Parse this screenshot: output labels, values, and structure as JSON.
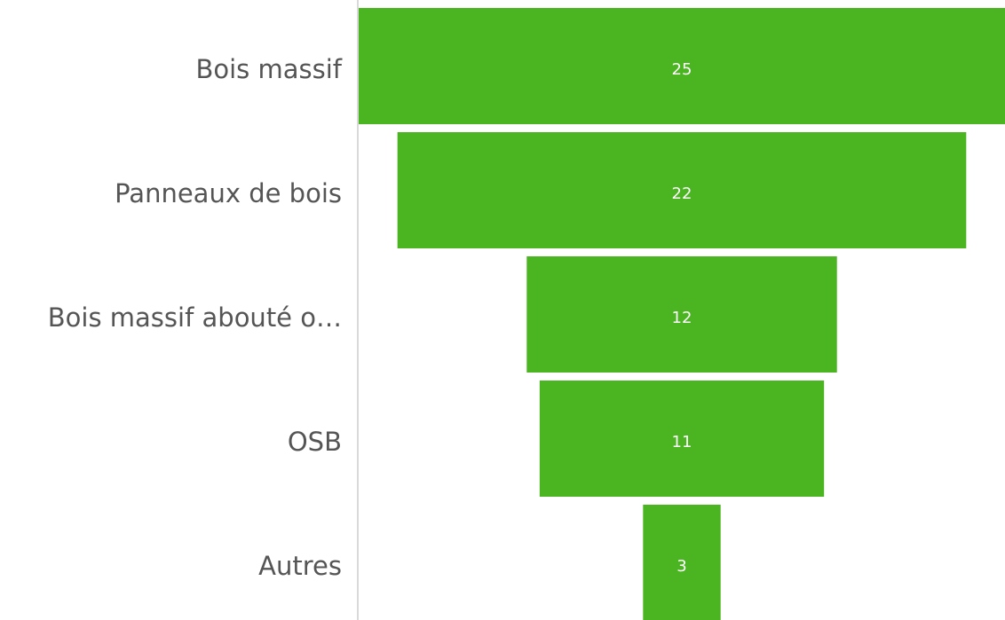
{
  "chart_data": {
    "type": "funnel",
    "categories": [
      "Bois massif",
      "Panneaux de bois",
      "Bois massif abouté o…",
      "OSB",
      "Autres"
    ],
    "values": [
      25,
      22,
      12,
      11,
      3
    ],
    "color": "#4bb521"
  }
}
